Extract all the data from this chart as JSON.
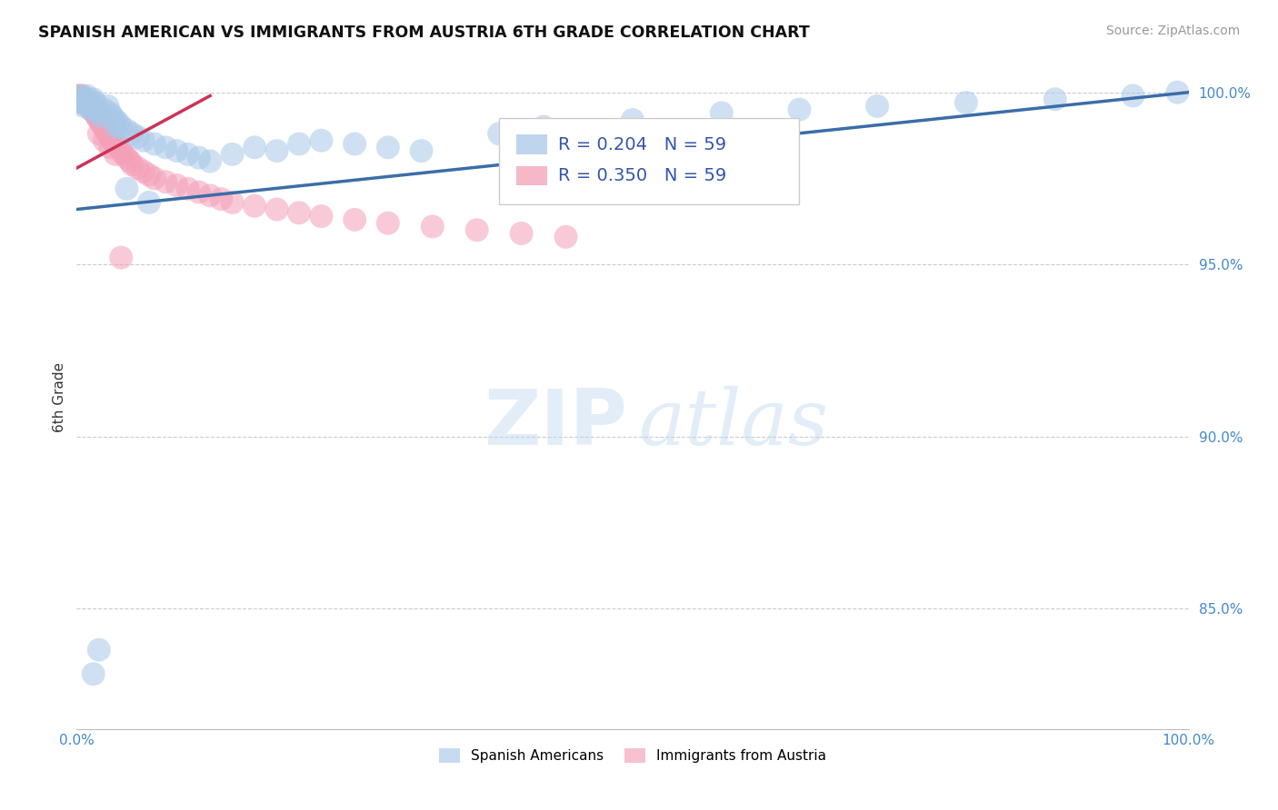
{
  "title": "SPANISH AMERICAN VS IMMIGRANTS FROM AUSTRIA 6TH GRADE CORRELATION CHART",
  "source": "Source: ZipAtlas.com",
  "ylabel": "6th Grade",
  "xlim": [
    0.0,
    1.0
  ],
  "ylim": [
    0.815,
    1.008
  ],
  "blue_color": "#a8c8e8",
  "pink_color": "#f4a0b8",
  "blue_line_color": "#3a6ea8",
  "pink_line_color": "#cc3355",
  "legend_text_color": "#3355aa",
  "r_blue": "R = 0.204",
  "n_blue": "N = 59",
  "r_pink": "R = 0.350",
  "n_pink": "N = 59",
  "watermark_zip_color": "#c0d8f0",
  "watermark_atlas_color": "#c0d8f0",
  "legend_label_1": "Spanish Americans",
  "legend_label_2": "Immigrants from Austria",
  "grid_color": "#cccccc",
  "ytick_color": "#4488cc",
  "xtick_color": "#4488cc",
  "blue_trend_x0": 0.0,
  "blue_trend_y0": 0.966,
  "blue_trend_x1": 1.0,
  "blue_trend_y1": 1.0,
  "pink_trend_x0": 0.0,
  "pink_trend_y0": 0.978,
  "pink_trend_x1": 0.12,
  "pink_trend_y1": 0.999
}
